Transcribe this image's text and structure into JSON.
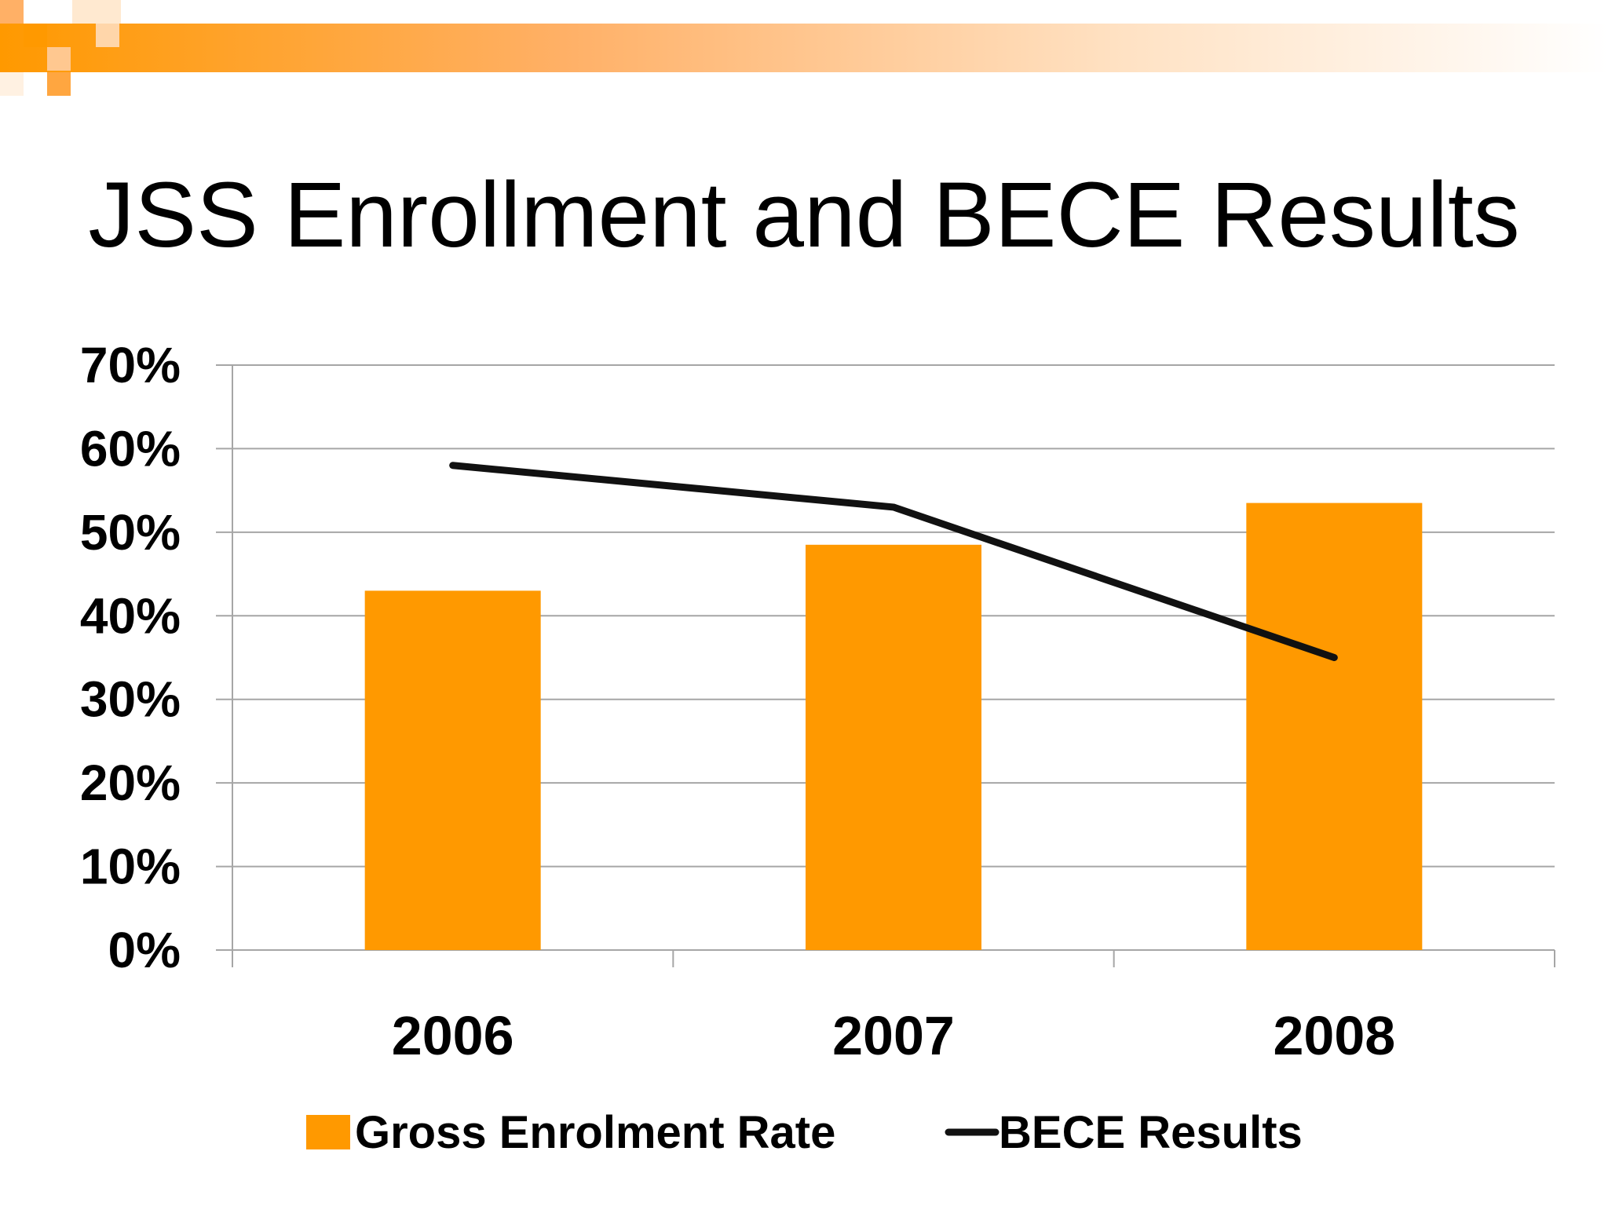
{
  "slide": {
    "title": "JSS Enrollment and BECE Results"
  },
  "colors": {
    "accent": "#FF9900",
    "line": "#111111",
    "grid": "#A6A6A6"
  },
  "chart_data": {
    "type": "bar",
    "title": "",
    "xlabel": "",
    "ylabel": "",
    "categories": [
      "2006",
      "2007",
      "2008"
    ],
    "ylim": [
      0,
      0.7
    ],
    "yticks": [
      {
        "value": 0,
        "label": "0%"
      },
      {
        "value": 0.1,
        "label": "10%"
      },
      {
        "value": 0.2,
        "label": "20%"
      },
      {
        "value": 0.3,
        "label": "30%"
      },
      {
        "value": 0.4,
        "label": "40%"
      },
      {
        "value": 0.5,
        "label": "50%"
      },
      {
        "value": 0.6,
        "label": "60%"
      },
      {
        "value": 0.7,
        "label": "70%"
      }
    ],
    "grid": true,
    "legend_position": "bottom",
    "series": [
      {
        "name": "Gross Enrolment Rate",
        "type": "bar",
        "values": [
          0.43,
          0.485,
          0.535
        ]
      },
      {
        "name": "BECE Results",
        "type": "line",
        "values": [
          0.58,
          0.53,
          0.35
        ]
      }
    ]
  }
}
